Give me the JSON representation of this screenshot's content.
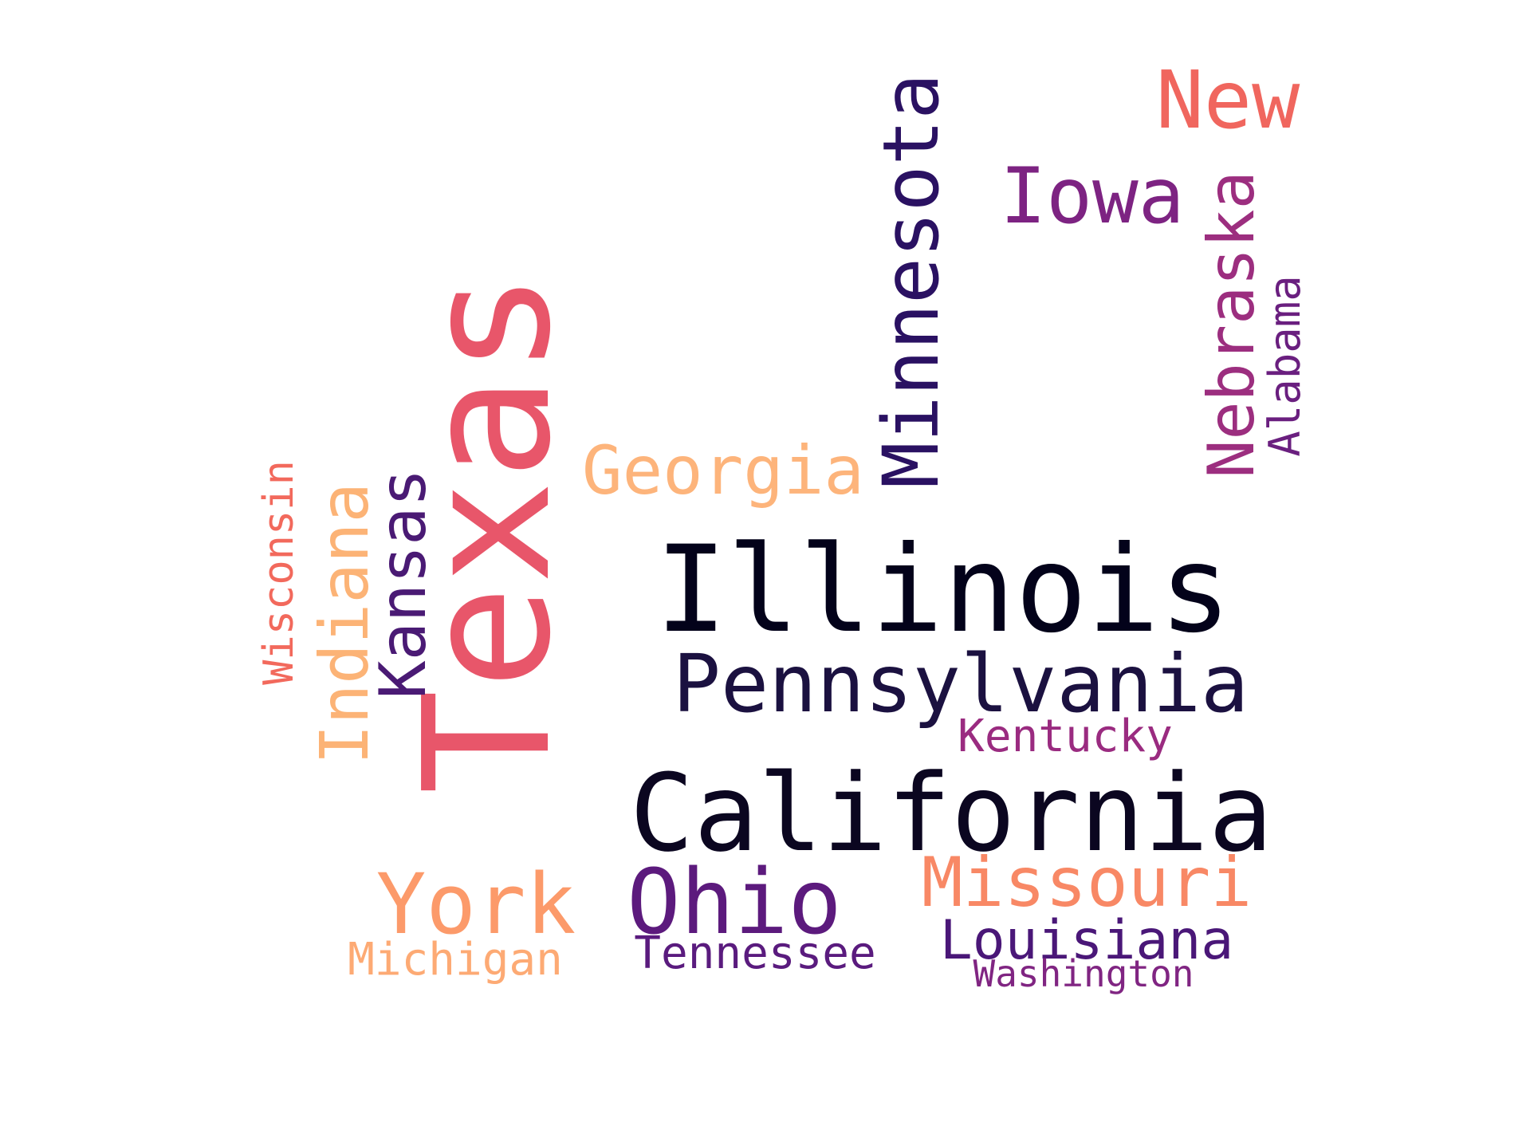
{
  "words": [
    {
      "text": "Texas",
      "color": "#e8566a",
      "rotated": true
    },
    {
      "text": "Illinois",
      "color": "#03021a",
      "rotated": false
    },
    {
      "text": "California",
      "color": "#0b0620",
      "rotated": false
    },
    {
      "text": "Pennsylvania",
      "color": "#1b1140",
      "rotated": false
    },
    {
      "text": "Minnesota",
      "color": "#2a1162",
      "rotated": true
    },
    {
      "text": "New",
      "color": "#f0665e",
      "rotated": false
    },
    {
      "text": "Iowa",
      "color": "#7d2382",
      "rotated": false
    },
    {
      "text": "Nebraska",
      "color": "#9c2e7f",
      "rotated": true
    },
    {
      "text": "Alabama",
      "color": "#6a1f7f",
      "rotated": true
    },
    {
      "text": "Georgia",
      "color": "#fdb47b",
      "rotated": false
    },
    {
      "text": "Indiana",
      "color": "#fcb376",
      "rotated": true
    },
    {
      "text": "Kansas",
      "color": "#4a1a74",
      "rotated": true
    },
    {
      "text": "Wisconsin",
      "color": "#f2695c",
      "rotated": true
    },
    {
      "text": "Kentucky",
      "color": "#9a2b80",
      "rotated": false
    },
    {
      "text": "York",
      "color": "#fc9a6a",
      "rotated": false
    },
    {
      "text": "Ohio",
      "color": "#5c1a7d",
      "rotated": false
    },
    {
      "text": "Missouri",
      "color": "#f88865",
      "rotated": false
    },
    {
      "text": "Louisiana",
      "color": "#4a1778",
      "rotated": false
    },
    {
      "text": "Michigan",
      "color": "#fdaa74",
      "rotated": false
    },
    {
      "text": "Tennessee",
      "color": "#5a1b7e",
      "rotated": false
    },
    {
      "text": "Washington",
      "color": "#802582",
      "rotated": false
    }
  ]
}
